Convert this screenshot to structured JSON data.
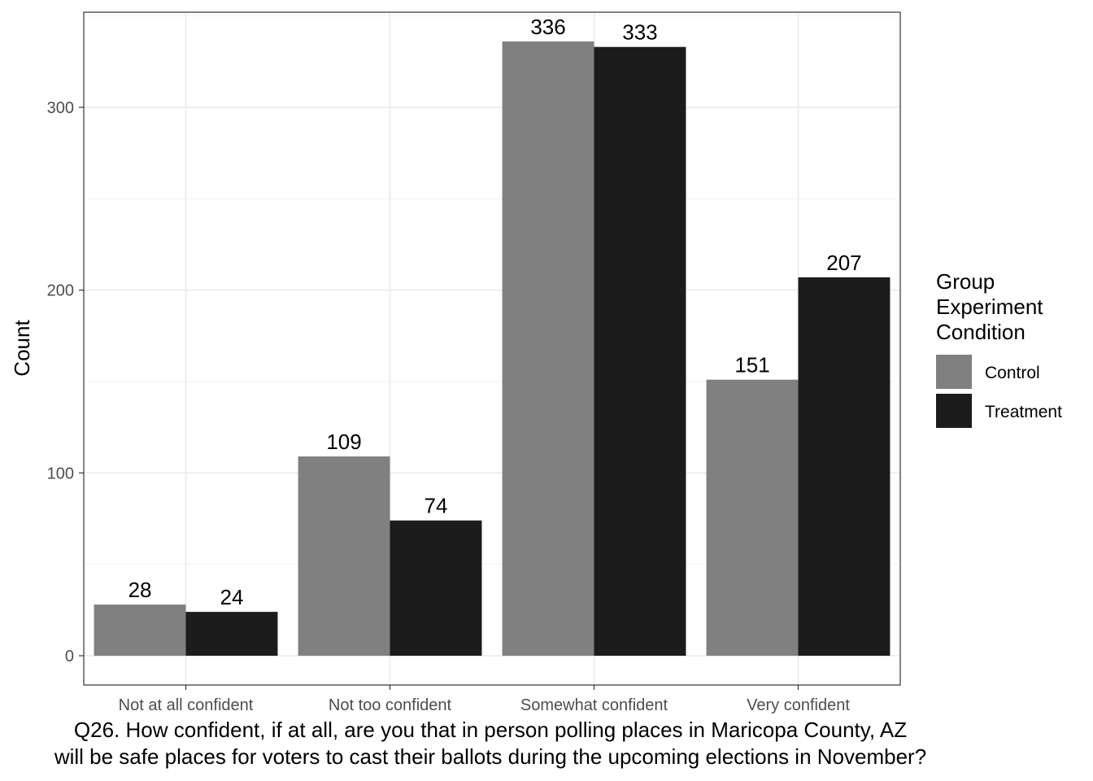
{
  "chart_data": {
    "type": "bar",
    "categories": [
      "Not at all confident",
      "Not too confident",
      "Somewhat confident",
      "Very confident"
    ],
    "series": [
      {
        "name": "Control",
        "values": [
          28,
          109,
          336,
          151
        ],
        "color": "#808080"
      },
      {
        "name": "Treatment",
        "values": [
          24,
          74,
          333,
          207
        ],
        "color": "#1c1c1c"
      }
    ],
    "ylabel": "Count",
    "xlabel": "",
    "ylim": [
      -16,
      352
    ],
    "yticks": [
      0,
      100,
      200,
      300
    ],
    "grid": true,
    "legend": {
      "title_lines": [
        "Group",
        "Experiment",
        "Condition"
      ],
      "placement": "right"
    },
    "caption_lines": [
      "Q26. How confident, if at all, are you that in person polling places in Maricopa County, AZ",
      "will be safe places for voters to cast their ballots during the upcoming elections in November?"
    ]
  }
}
